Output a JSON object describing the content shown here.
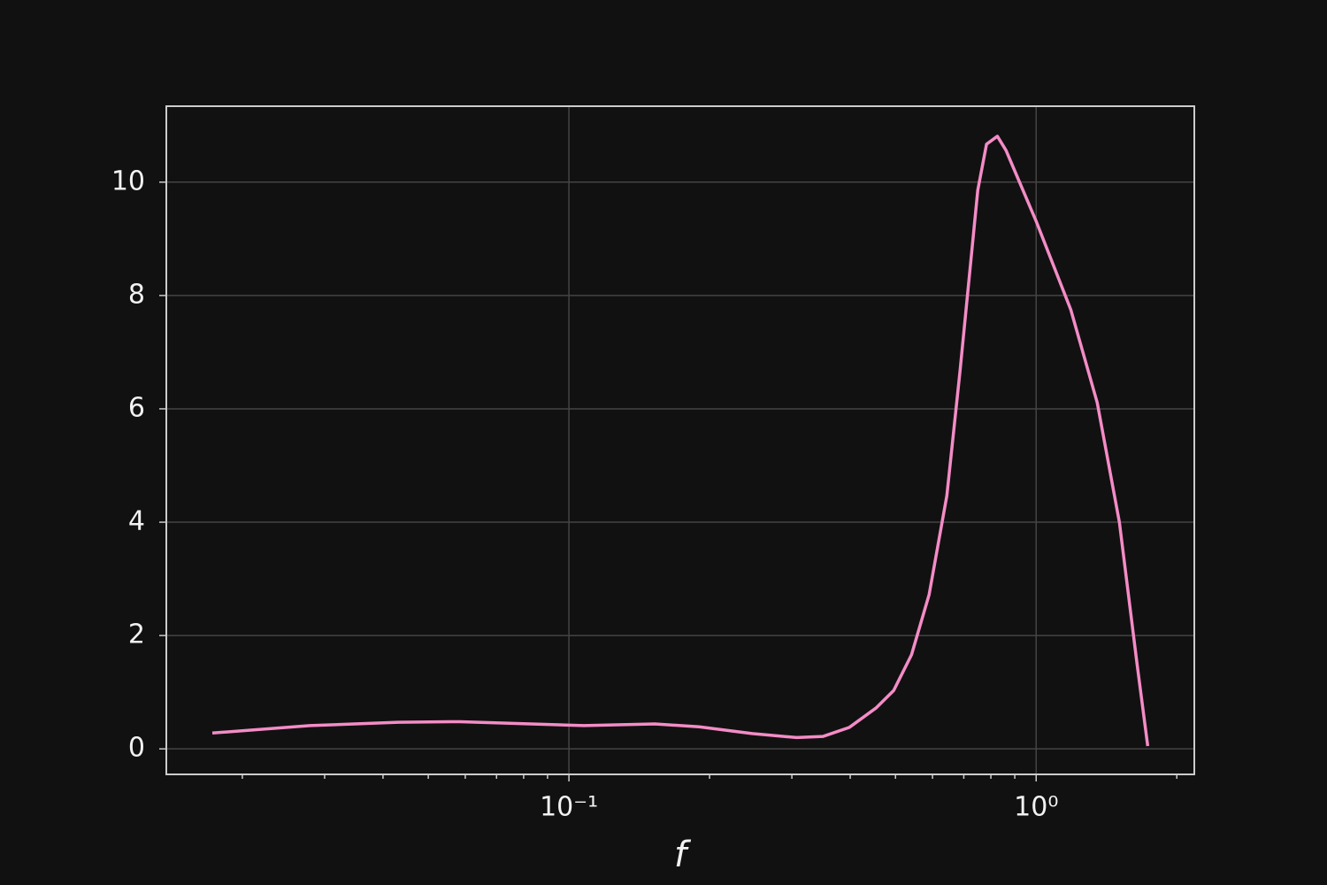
{
  "chart_data": {
    "type": "line",
    "xlabel": "f",
    "xscale": "log",
    "xlim": [
      0.01375,
      2.18
    ],
    "ylim": [
      -0.45,
      11.34
    ],
    "xticks": [
      {
        "value": 0.1,
        "label": "10⁻¹"
      },
      {
        "value": 1,
        "label": "10⁰"
      }
    ],
    "xminorticks": [
      0.02,
      0.03,
      0.04,
      0.05,
      0.06,
      0.07,
      0.08,
      0.09,
      0.2,
      0.3,
      0.4,
      0.5,
      0.6,
      0.7,
      0.8,
      0.9,
      2
    ],
    "yticks": [
      0,
      2,
      4,
      6,
      8,
      10
    ],
    "grid": true,
    "series": [
      {
        "color": "#f48cc6",
        "x": [
          0.01725,
          0.0279,
          0.0431,
          0.0585,
          0.0829,
          0.1077,
          0.1527,
          0.19,
          0.2466,
          0.307,
          0.35,
          0.3985,
          0.454,
          0.4955,
          0.541,
          0.59,
          0.644,
          0.687,
          0.75,
          0.783,
          0.826,
          0.862,
          1.0,
          1.186,
          1.351,
          1.507,
          1.644,
          1.733
        ],
        "values": [
          0.28,
          0.41,
          0.47,
          0.48,
          0.44,
          0.41,
          0.44,
          0.39,
          0.27,
          0.2,
          0.22,
          0.38,
          0.72,
          1.03,
          1.66,
          2.72,
          4.47,
          6.66,
          9.86,
          10.67,
          10.81,
          10.56,
          9.31,
          7.75,
          6.11,
          4.0,
          1.5,
          0.05
        ]
      }
    ]
  }
}
